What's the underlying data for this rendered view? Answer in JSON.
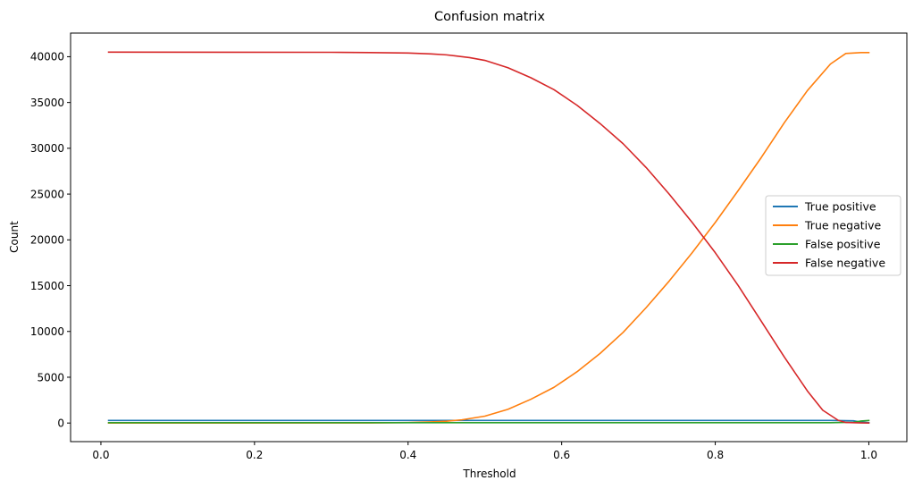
{
  "chart_data": {
    "type": "line",
    "title": "Confusion matrix",
    "xlabel": "Threshold",
    "ylabel": "Count",
    "xlim": [
      -0.0395,
      1.0495
    ],
    "ylim": [
      -2030,
      42580
    ],
    "xticks": [
      0.0,
      0.2,
      0.4,
      0.6,
      0.8,
      1.0
    ],
    "xtick_labels": [
      "0.0",
      "0.2",
      "0.4",
      "0.6",
      "0.8",
      "1.0"
    ],
    "yticks": [
      0,
      5000,
      10000,
      15000,
      20000,
      25000,
      30000,
      35000,
      40000
    ],
    "ytick_labels": [
      "0",
      "5000",
      "10000",
      "15000",
      "20000",
      "25000",
      "30000",
      "35000",
      "40000"
    ],
    "grid": false,
    "legend_position": "center-right",
    "series": [
      {
        "name": "True positive",
        "color": "#1f77b4",
        "points": [
          [
            0.01,
            280
          ],
          [
            0.5,
            280
          ],
          [
            0.9,
            280
          ],
          [
            0.95,
            280
          ],
          [
            0.98,
            250
          ],
          [
            0.99,
            100
          ],
          [
            1.0,
            40
          ]
        ]
      },
      {
        "name": "True negative",
        "color": "#ff7f0e",
        "points": [
          [
            0.01,
            0
          ],
          [
            0.35,
            10
          ],
          [
            0.4,
            50
          ],
          [
            0.43,
            120
          ],
          [
            0.45,
            200
          ],
          [
            0.47,
            350
          ],
          [
            0.5,
            750
          ],
          [
            0.53,
            1500
          ],
          [
            0.56,
            2600
          ],
          [
            0.59,
            3900
          ],
          [
            0.62,
            5600
          ],
          [
            0.65,
            7600
          ],
          [
            0.68,
            9900
          ],
          [
            0.71,
            12600
          ],
          [
            0.74,
            15500
          ],
          [
            0.77,
            18600
          ],
          [
            0.8,
            21900
          ],
          [
            0.83,
            25400
          ],
          [
            0.86,
            29000
          ],
          [
            0.89,
            32800
          ],
          [
            0.92,
            36300
          ],
          [
            0.95,
            39200
          ],
          [
            0.97,
            40350
          ],
          [
            0.99,
            40450
          ],
          [
            1.0,
            40450
          ]
        ]
      },
      {
        "name": "False positive",
        "color": "#2ca02c",
        "points": [
          [
            0.01,
            40
          ],
          [
            0.5,
            40
          ],
          [
            0.9,
            40
          ],
          [
            0.95,
            40
          ],
          [
            0.98,
            80
          ],
          [
            0.99,
            220
          ],
          [
            1.0,
            280
          ]
        ]
      },
      {
        "name": "False negative",
        "color": "#d62728",
        "points": [
          [
            0.01,
            40500
          ],
          [
            0.3,
            40480
          ],
          [
            0.35,
            40450
          ],
          [
            0.4,
            40400
          ],
          [
            0.43,
            40300
          ],
          [
            0.45,
            40200
          ],
          [
            0.48,
            39900
          ],
          [
            0.5,
            39600
          ],
          [
            0.53,
            38800
          ],
          [
            0.56,
            37700
          ],
          [
            0.59,
            36400
          ],
          [
            0.62,
            34700
          ],
          [
            0.65,
            32700
          ],
          [
            0.68,
            30500
          ],
          [
            0.71,
            27900
          ],
          [
            0.74,
            25000
          ],
          [
            0.77,
            21900
          ],
          [
            0.8,
            18600
          ],
          [
            0.83,
            15000
          ],
          [
            0.86,
            11100
          ],
          [
            0.89,
            7200
          ],
          [
            0.92,
            3500
          ],
          [
            0.94,
            1400
          ],
          [
            0.96,
            300
          ],
          [
            0.97,
            60
          ],
          [
            0.99,
            10
          ],
          [
            1.0,
            0
          ]
        ]
      }
    ]
  }
}
